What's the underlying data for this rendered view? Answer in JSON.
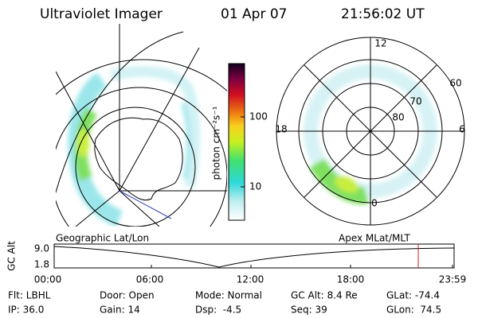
{
  "header": {
    "title": "Ultraviolet Imager",
    "date": "01 Apr 07",
    "time": "21:56:02 UT"
  },
  "colorbar": {
    "label": "photon cm⁻²s⁻¹",
    "ticks": [
      "100",
      "10"
    ]
  },
  "polar": {
    "mlt_labels": [
      "12",
      "6",
      "0",
      "18"
    ],
    "mlat_labels": [
      "60",
      "70",
      "80"
    ]
  },
  "panel_labels": {
    "left": "Geographic Lat/Lon",
    "right": "Apex MLat/MLT"
  },
  "timeline": {
    "y_label": "GC Alt",
    "y_ticks": [
      "9.0",
      "1.8"
    ],
    "x_ticks": [
      "00:00",
      "06:00",
      "12:00",
      "18:00",
      "23:59"
    ]
  },
  "footer": {
    "rows": [
      [
        "Flt: LBHL",
        "Door: Open",
        "Mode: Normal",
        "GC Alt: 8.4 Re",
        "GLat: -74.4"
      ],
      [
        "IP: 36.0",
        "Gain: 14",
        "Dsp:  -4.5",
        "Seq: 39",
        "GLon:  74.5"
      ]
    ]
  }
}
